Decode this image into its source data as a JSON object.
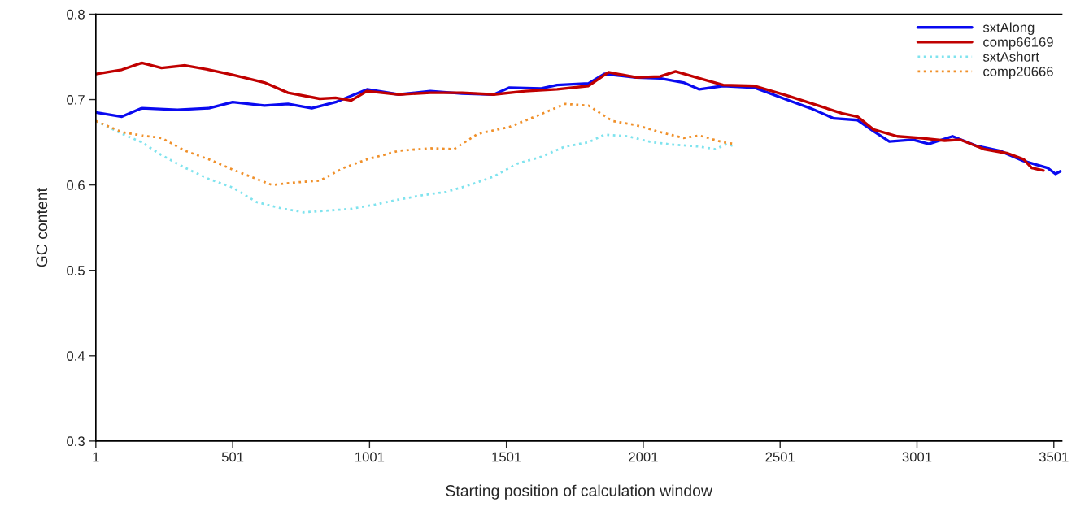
{
  "chart_data": {
    "type": "line",
    "xlabel": "Starting position of calculation window",
    "ylabel": "GC content",
    "xlim": [
      1,
      3530
    ],
    "xticks": [
      1,
      501,
      1001,
      1501,
      2001,
      2501,
      3001,
      3501
    ],
    "ylim": [
      0.3,
      0.8
    ],
    "yticks": [
      0.3,
      0.4,
      0.5,
      0.6,
      0.7,
      0.8
    ],
    "grid": false,
    "legend": "top right",
    "series": [
      {
        "name": "sxtAlong",
        "color": "#0a0af0",
        "line_style": "solid",
        "x": [
          1,
          96,
          169,
          299,
          414,
          501,
          617,
          703,
          790,
          877,
          992,
          1108,
          1223,
          1339,
          1455,
          1512,
          1628,
          1686,
          1801,
          1859,
          1975,
          2062,
          2148,
          2206,
          2293,
          2408,
          2524,
          2611,
          2697,
          2784,
          2842,
          2900,
          2986,
          3044,
          3131,
          3217,
          3304,
          3391,
          3478,
          3507,
          3525
        ],
        "values": [
          0.685,
          0.68,
          0.69,
          0.688,
          0.69,
          0.697,
          0.693,
          0.695,
          0.69,
          0.697,
          0.712,
          0.706,
          0.71,
          0.707,
          0.706,
          0.714,
          0.713,
          0.717,
          0.719,
          0.73,
          0.726,
          0.725,
          0.72,
          0.712,
          0.716,
          0.714,
          0.7,
          0.69,
          0.678,
          0.676,
          0.663,
          0.651,
          0.653,
          0.648,
          0.657,
          0.646,
          0.64,
          0.628,
          0.62,
          0.613,
          0.616
        ]
      },
      {
        "name": "comp66169",
        "color": "#c00000",
        "line_style": "solid",
        "x": [
          1,
          96,
          169,
          241,
          328,
          414,
          501,
          617,
          703,
          819,
          877,
          934,
          992,
          1108,
          1223,
          1339,
          1455,
          1570,
          1686,
          1801,
          1874,
          1975,
          2062,
          2119,
          2206,
          2293,
          2408,
          2524,
          2640,
          2726,
          2784,
          2842,
          2929,
          3015,
          3102,
          3160,
          3246,
          3333,
          3391,
          3420,
          3463
        ],
        "values": [
          0.73,
          0.735,
          0.743,
          0.737,
          0.74,
          0.735,
          0.729,
          0.72,
          0.708,
          0.701,
          0.702,
          0.699,
          0.71,
          0.706,
          0.708,
          0.708,
          0.706,
          0.71,
          0.712,
          0.716,
          0.732,
          0.726,
          0.727,
          0.733,
          0.725,
          0.717,
          0.716,
          0.705,
          0.693,
          0.684,
          0.68,
          0.665,
          0.657,
          0.655,
          0.652,
          0.653,
          0.642,
          0.637,
          0.63,
          0.62,
          0.617
        ]
      },
      {
        "name": "sxtAshort",
        "color": "#7fe3ee",
        "line_style": "dotted",
        "x": [
          1,
          96,
          169,
          241,
          328,
          414,
          501,
          588,
          674,
          761,
          848,
          934,
          1021,
          1108,
          1195,
          1281,
          1368,
          1455,
          1541,
          1628,
          1715,
          1801,
          1859,
          1946,
          2033,
          2119,
          2206,
          2264,
          2307,
          2336
        ],
        "values": [
          0.675,
          0.66,
          0.65,
          0.635,
          0.62,
          0.607,
          0.597,
          0.58,
          0.573,
          0.568,
          0.57,
          0.572,
          0.577,
          0.583,
          0.588,
          0.592,
          0.6,
          0.61,
          0.625,
          0.633,
          0.645,
          0.65,
          0.659,
          0.657,
          0.65,
          0.647,
          0.645,
          0.642,
          0.648,
          0.645
        ]
      },
      {
        "name": "comp20666",
        "color": "#f0902a",
        "line_style": "dotted",
        "x": [
          1,
          96,
          169,
          241,
          328,
          414,
          501,
          588,
          645,
          732,
          819,
          906,
          992,
          1108,
          1223,
          1310,
          1397,
          1512,
          1628,
          1715,
          1801,
          1888,
          1975,
          2062,
          2148,
          2206,
          2293,
          2336
        ],
        "values": [
          0.675,
          0.662,
          0.658,
          0.655,
          0.64,
          0.63,
          0.618,
          0.607,
          0.6,
          0.603,
          0.605,
          0.62,
          0.63,
          0.64,
          0.643,
          0.642,
          0.66,
          0.668,
          0.683,
          0.695,
          0.693,
          0.675,
          0.67,
          0.662,
          0.655,
          0.658,
          0.65,
          0.648
        ]
      }
    ]
  }
}
